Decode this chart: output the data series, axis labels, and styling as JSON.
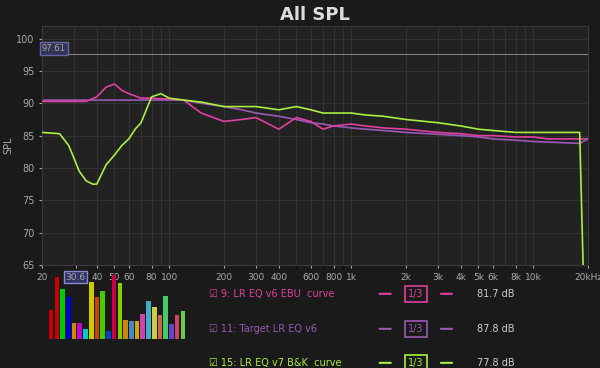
{
  "title": "All SPL",
  "bg_color": "#1a1a1a",
  "plot_bg_color": "#222222",
  "grid_color": "#3a3a3a",
  "title_color": "#dddddd",
  "axis_label_color": "#aaaaaa",
  "tick_color": "#aaaaaa",
  "ylabel": "SPL",
  "ylim": [
    65,
    102
  ],
  "yticks": [
    65,
    70,
    75,
    80,
    85,
    90,
    95,
    100
  ],
  "ref_line_y": 97.61,
  "ref_label": "97.61",
  "freqs_pink": [
    20,
    25,
    30,
    35,
    40,
    45,
    50,
    55,
    60,
    70,
    80,
    90,
    100,
    120,
    150,
    200,
    250,
    300,
    400,
    500,
    600,
    700,
    800,
    1000,
    1200,
    1500,
    2000,
    3000,
    4000,
    5000,
    6000,
    8000,
    10000,
    12000,
    15000,
    18000,
    20000
  ],
  "spl_pink": [
    90.3,
    90.3,
    90.3,
    90.3,
    91.0,
    92.5,
    93.0,
    92.0,
    91.5,
    90.8,
    90.8,
    90.7,
    90.7,
    90.5,
    88.5,
    87.2,
    87.5,
    87.8,
    86.0,
    87.8,
    87.2,
    86.0,
    86.5,
    86.8,
    86.5,
    86.2,
    86.0,
    85.5,
    85.3,
    85.0,
    85.0,
    84.8,
    84.8,
    84.5,
    84.5,
    84.5,
    84.5
  ],
  "freqs_purple": [
    20,
    25,
    30,
    35,
    40,
    45,
    50,
    55,
    60,
    70,
    80,
    90,
    100,
    120,
    150,
    200,
    250,
    300,
    400,
    500,
    600,
    700,
    800,
    1000,
    1200,
    1500,
    2000,
    3000,
    4000,
    5000,
    6000,
    8000,
    10000,
    12000,
    15000,
    18000,
    20000
  ],
  "spl_purple": [
    90.5,
    90.5,
    90.5,
    90.5,
    90.5,
    90.5,
    90.5,
    90.5,
    90.5,
    90.5,
    90.5,
    90.5,
    90.5,
    90.5,
    90.0,
    89.5,
    89.0,
    88.5,
    88.0,
    87.5,
    87.0,
    86.8,
    86.5,
    86.2,
    86.0,
    85.8,
    85.5,
    85.2,
    85.0,
    84.8,
    84.5,
    84.3,
    84.1,
    84.0,
    83.9,
    83.8,
    84.5
  ],
  "freqs_green": [
    20,
    25,
    28,
    30,
    32,
    35,
    38,
    40,
    45,
    50,
    55,
    60,
    65,
    70,
    80,
    90,
    100,
    120,
    150,
    200,
    250,
    300,
    400,
    500,
    600,
    700,
    800,
    900,
    1000,
    1200,
    1500,
    2000,
    3000,
    4000,
    5000,
    6000,
    8000,
    10000,
    11000,
    12000,
    13000,
    14000,
    15000,
    16000,
    18000,
    19000,
    19500,
    20000
  ],
  "spl_green": [
    85.5,
    85.3,
    83.5,
    81.5,
    79.5,
    78.0,
    77.5,
    77.5,
    80.5,
    82.0,
    83.5,
    84.5,
    86.0,
    87.0,
    91.0,
    91.5,
    90.8,
    90.5,
    90.2,
    89.5,
    89.5,
    89.5,
    89.0,
    89.5,
    89.0,
    88.5,
    88.5,
    88.5,
    88.5,
    88.2,
    88.0,
    87.5,
    87.0,
    86.5,
    86.0,
    85.8,
    85.5,
    85.5,
    85.5,
    85.5,
    85.5,
    85.5,
    85.5,
    85.5,
    85.5,
    60.0,
    50.0,
    40.0
  ],
  "pink_color": "#e040a0",
  "purple_color": "#9b59b6",
  "green_color": "#aaee44",
  "legend_entries": [
    {
      "label": "9: LR EQ v6 EBU  curve",
      "color": "#e040a0",
      "value": "81.7 dB"
    },
    {
      "label": "11: Target LR EQ v6",
      "color": "#9b59b6",
      "value": "87.8 dB"
    },
    {
      "label": "15: LR EQ v7 B&K  curve",
      "color": "#aaee44",
      "value": "77.8 dB"
    }
  ],
  "xtick_labels": [
    "20",
    "30.6",
    "40",
    "50",
    "60",
    "80",
    "100",
    "200",
    "300",
    "400",
    "600",
    "800",
    "1k",
    "2k",
    "3k",
    "4k",
    "5k",
    "6k",
    "8k",
    "10k",
    "20kHz"
  ],
  "xtick_freqs": [
    20,
    30.6,
    40,
    50,
    60,
    80,
    100,
    200,
    300,
    400,
    600,
    800,
    1000,
    2000,
    3000,
    4000,
    5000,
    6000,
    8000,
    10000,
    20000
  ]
}
